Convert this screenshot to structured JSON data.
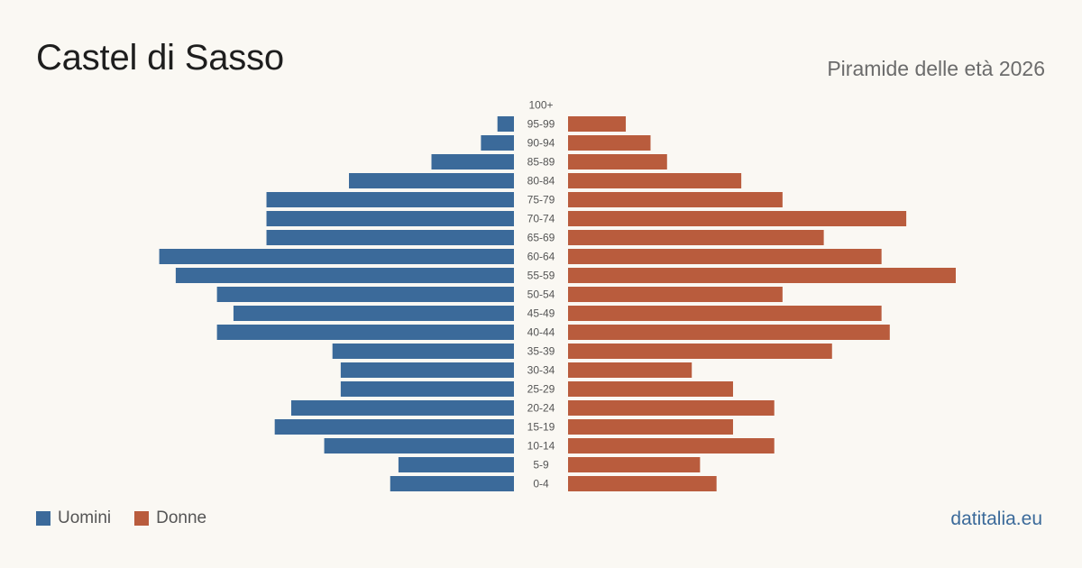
{
  "header": {
    "title": "Castel di Sasso",
    "subtitle": "Piramide delle età 2026"
  },
  "legend": {
    "men_label": "Uomini",
    "women_label": "Donne"
  },
  "brand": "datitalia.eu",
  "colors": {
    "men": "#3b6a9a",
    "women": "#b95c3d",
    "background": "#faf8f3"
  },
  "chart_data": {
    "type": "bar",
    "orientation": "horizontal-pyramid",
    "categories": [
      "100+",
      "95-99",
      "90-94",
      "85-89",
      "80-84",
      "75-79",
      "70-74",
      "65-69",
      "60-64",
      "55-59",
      "50-54",
      "45-49",
      "40-44",
      "35-39",
      "30-34",
      "25-29",
      "20-24",
      "15-19",
      "10-14",
      "5-9",
      "0-4"
    ],
    "series": [
      {
        "name": "Uomini",
        "values": [
          0,
          2,
          4,
          10,
          20,
          30,
          30,
          30,
          43,
          41,
          36,
          34,
          36,
          22,
          21,
          21,
          27,
          29,
          23,
          14,
          15
        ]
      },
      {
        "name": "Donne",
        "values": [
          0,
          7,
          10,
          12,
          21,
          26,
          41,
          31,
          38,
          47,
          26,
          38,
          39,
          32,
          15,
          20,
          25,
          20,
          25,
          16,
          18
        ]
      }
    ],
    "xlim": [
      0,
      47
    ],
    "grid": false,
    "legend_position": "bottom-left"
  }
}
